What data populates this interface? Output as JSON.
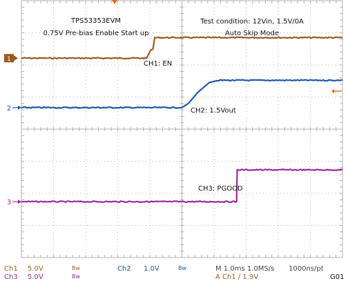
{
  "chart_data": {
    "type": "line",
    "title": "TPS53353EVM",
    "subtitle": "0.75V Pre-bias Enable Start up",
    "annotations": {
      "test_condition": "Test condition: 12Vin, 1.5V/0A",
      "mode": "Auto Skip Mode"
    },
    "grid": true,
    "xlim_div": [
      0,
      10
    ],
    "ylim_div": [
      0,
      8
    ],
    "time_per_div": "1.0ms",
    "series": [
      {
        "name": "CH1: EN",
        "channel": "1",
        "color": "#9a5a1e",
        "scale": "5.0V",
        "x": [
          0,
          3.9,
          4.02,
          4.1,
          4.15,
          10
        ],
        "y": [
          6.21,
          6.21,
          6.45,
          6.5,
          6.85,
          6.85
        ]
      },
      {
        "name": "CH2: 1.5Vout",
        "channel": "2",
        "color": "#1f56a8",
        "scale": "1.0V",
        "x": [
          0,
          5.0,
          5.2,
          5.5,
          5.85,
          6.15,
          10
        ],
        "y": [
          4.67,
          4.67,
          4.8,
          5.15,
          5.45,
          5.52,
          5.52
        ]
      },
      {
        "name": "CH3: PGOOD",
        "channel": "3",
        "color": "#9c2a96",
        "scale": "5.0V",
        "x": [
          0,
          6.7,
          6.72,
          10
        ],
        "y": [
          1.74,
          1.74,
          2.73,
          2.73
        ]
      }
    ]
  },
  "status": {
    "ch1_label": "Ch1",
    "ch1_scale": "5.0V",
    "ch1_bw": "Bw",
    "ch3_label": "Ch3",
    "ch3_scale": "5.0V",
    "ch3_bw": "Bw",
    "ch2_label": "Ch2",
    "ch2_scale": "1.0V",
    "ch2_bw": "Bw",
    "timebase": "M 1.0ms 1.0MS/s",
    "record": "1000ns/pt",
    "trigger": "A  Ch1  ∕  1.9V",
    "figure_id": "G01"
  },
  "colors": {
    "grid": "#b0b0b0",
    "trigger_marker": "#e8661a",
    "status_text": "#a0601e",
    "ch3_text": "#9c2a96",
    "ch2_text": "#1f56a8"
  }
}
